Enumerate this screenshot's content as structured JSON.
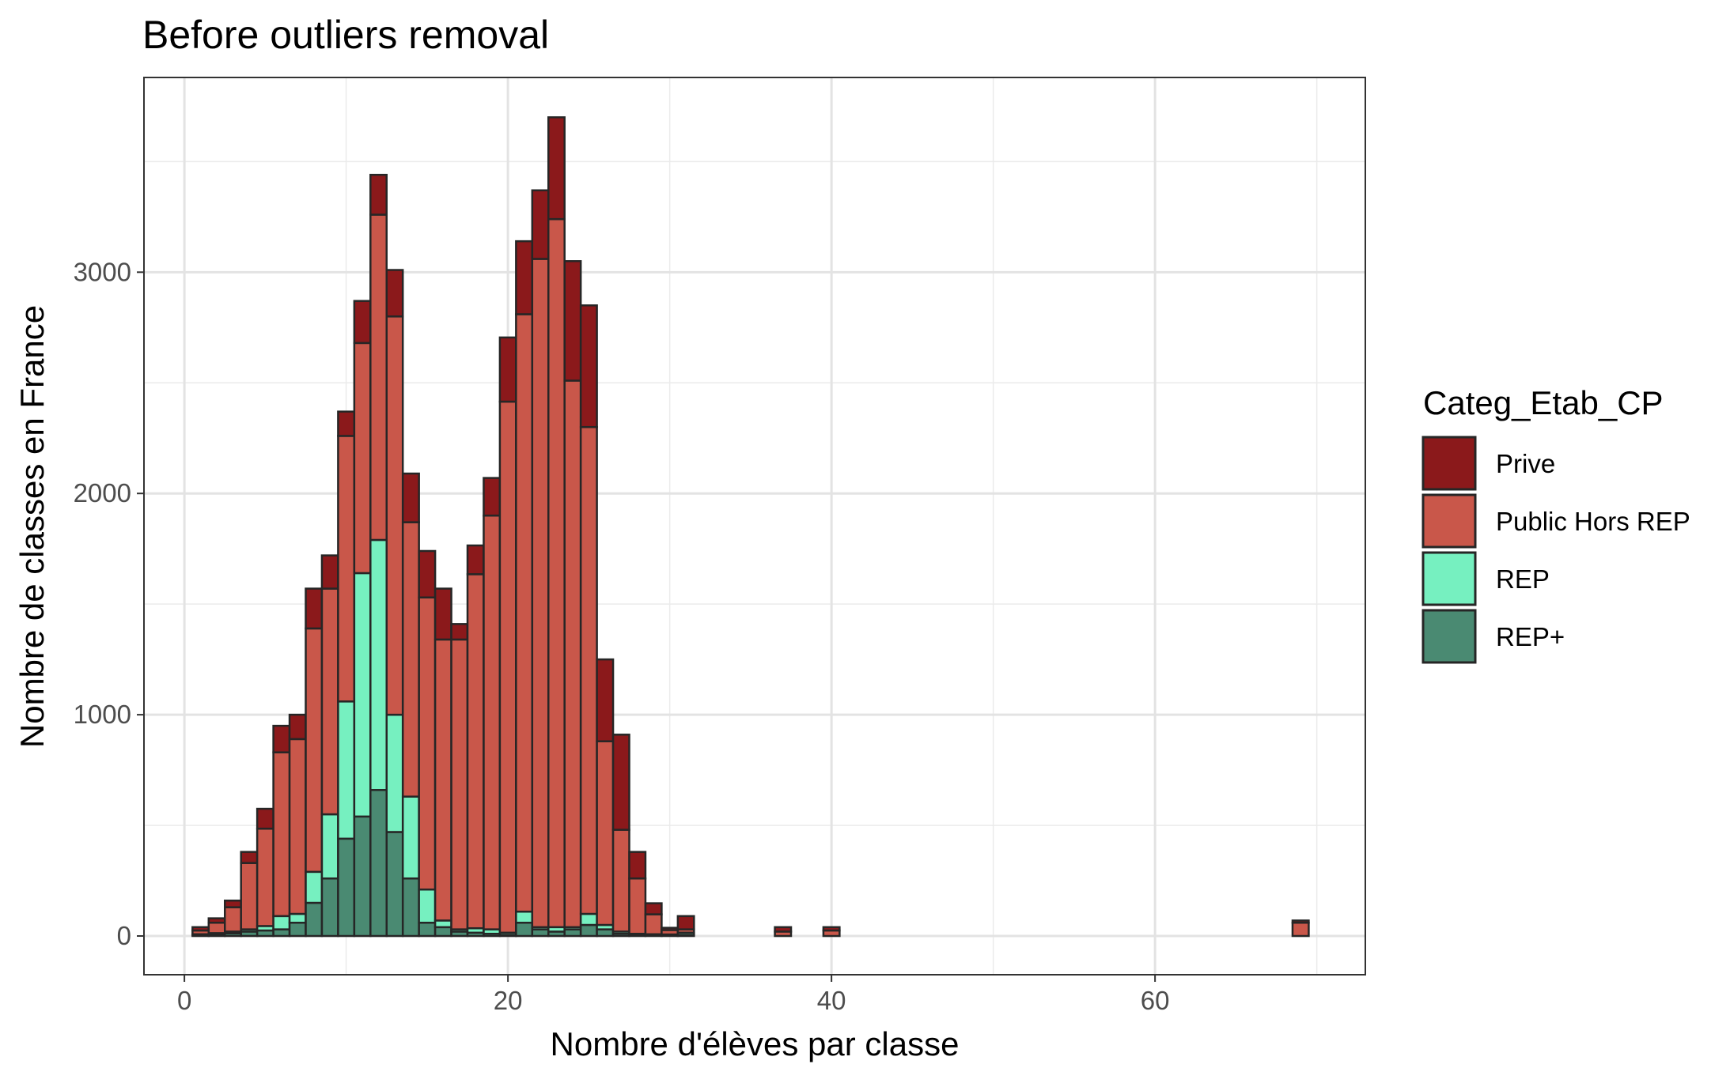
{
  "chart_data": {
    "type": "bar",
    "stacked": true,
    "title": "Before outliers removal",
    "xlabel": "Nombre d'élèves par classe",
    "ylabel": "Nombre de classes en France",
    "xlim": [
      -2.5,
      73
    ],
    "ylim": [
      -175,
      3880
    ],
    "xticks": [
      0,
      20,
      40,
      60
    ],
    "yticks": [
      0,
      1000,
      2000,
      3000
    ],
    "grid": true,
    "legend_title": "Categ_Etab_CP",
    "legend_position": "right",
    "x": [
      1,
      2,
      3,
      4,
      5,
      6,
      7,
      8,
      9,
      10,
      11,
      12,
      13,
      14,
      15,
      16,
      17,
      18,
      19,
      20,
      21,
      22,
      23,
      24,
      25,
      26,
      27,
      28,
      29,
      30,
      31,
      32,
      33,
      34,
      35,
      36,
      37,
      38,
      39,
      40,
      41,
      42,
      43,
      44,
      45,
      46,
      47,
      48,
      49,
      50,
      51,
      52,
      53,
      54,
      55,
      56,
      57,
      58,
      59,
      60,
      61,
      62,
      63,
      64,
      65,
      66,
      67,
      68,
      69
    ],
    "series": [
      {
        "name": "REP+",
        "color": "#4a8a72",
        "values": [
          5,
          8,
          12,
          20,
          25,
          30,
          60,
          150,
          260,
          440,
          540,
          660,
          470,
          260,
          60,
          40,
          20,
          15,
          10,
          5,
          60,
          30,
          20,
          30,
          50,
          30,
          10,
          5,
          3,
          2,
          5,
          0,
          0,
          0,
          0,
          0,
          0,
          0,
          0,
          0,
          0,
          0,
          0,
          0,
          0,
          0,
          0,
          0,
          0,
          0,
          0,
          0,
          0,
          0,
          0,
          0,
          0,
          0,
          0,
          0,
          0,
          0,
          0,
          0,
          0,
          0,
          0,
          0,
          0
        ]
      },
      {
        "name": "REP",
        "color": "#76f0c0",
        "values": [
          3,
          5,
          8,
          10,
          20,
          60,
          40,
          140,
          290,
          620,
          1100,
          1130,
          530,
          370,
          150,
          30,
          10,
          20,
          20,
          10,
          50,
          10,
          20,
          10,
          50,
          20,
          10,
          5,
          5,
          5,
          10,
          0,
          0,
          0,
          0,
          0,
          0,
          0,
          0,
          0,
          0,
          0,
          0,
          0,
          0,
          0,
          0,
          0,
          0,
          0,
          0,
          0,
          0,
          0,
          0,
          0,
          0,
          0,
          0,
          0,
          0,
          0,
          0,
          0,
          0,
          0,
          0,
          0,
          0
        ]
      },
      {
        "name": "Public Hors REP",
        "color": "#c9574a",
        "values": [
          17,
          47,
          110,
          300,
          440,
          740,
          790,
          1100,
          1020,
          1200,
          1040,
          1470,
          1800,
          1240,
          1320,
          1270,
          1310,
          1600,
          1870,
          2400,
          2700,
          3020,
          3200,
          2470,
          2200,
          830,
          460,
          250,
          90,
          20,
          15,
          0,
          0,
          0,
          0,
          0,
          20,
          0,
          0,
          25,
          0,
          0,
          0,
          0,
          0,
          0,
          0,
          0,
          0,
          0,
          0,
          0,
          0,
          0,
          0,
          0,
          0,
          0,
          0,
          0,
          0,
          0,
          0,
          0,
          0,
          0,
          0,
          0,
          60
        ]
      },
      {
        "name": "Prive",
        "color": "#8b191b",
        "values": [
          15,
          20,
          30,
          50,
          90,
          120,
          110,
          180,
          150,
          110,
          190,
          180,
          210,
          220,
          210,
          230,
          70,
          130,
          170,
          290,
          330,
          310,
          460,
          540,
          550,
          370,
          430,
          120,
          50,
          10,
          60,
          0,
          0,
          0,
          0,
          0,
          20,
          0,
          0,
          15,
          0,
          0,
          0,
          0,
          0,
          0,
          0,
          0,
          0,
          0,
          0,
          0,
          0,
          0,
          0,
          0,
          0,
          0,
          0,
          0,
          0,
          0,
          0,
          0,
          0,
          0,
          0,
          0,
          10
        ]
      }
    ]
  }
}
